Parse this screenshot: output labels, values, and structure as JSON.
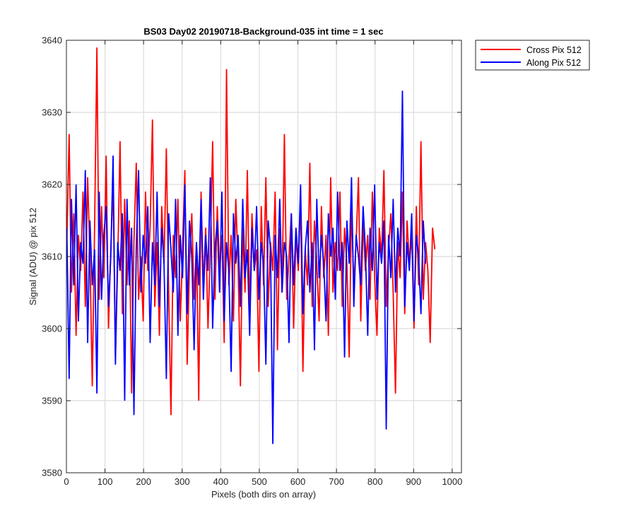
{
  "chart_data": {
    "type": "line",
    "title": "BS03 Day02 20190718-Background-035 int time = 1 sec",
    "xlabel": "Pixels (both dirs on array)",
    "ylabel": "Signal (ADU) @ pix 512",
    "xlim": [
      0,
      1024
    ],
    "ylim": [
      3580,
      3640
    ],
    "xticks": [
      0,
      100,
      200,
      300,
      400,
      500,
      600,
      700,
      800,
      900,
      1000
    ],
    "yticks": [
      3580,
      3590,
      3600,
      3610,
      3620,
      3630,
      3640
    ],
    "grid": true,
    "legend_position": "outside-top-right",
    "x_start": 1,
    "x_step": 6,
    "series": [
      {
        "name": "Cross Pix 512",
        "color": "#ff0000",
        "values": [
          3612,
          3627,
          3605,
          3616,
          3599,
          3613,
          3608,
          3619,
          3603,
          3621,
          3610,
          3592,
          3614,
          3639,
          3604,
          3617,
          3607,
          3624,
          3600,
          3611,
          3620,
          3596,
          3609,
          3626,
          3602,
          3618,
          3606,
          3615,
          3591,
          3612,
          3623,
          3604,
          3610,
          3601,
          3619,
          3608,
          3614,
          3629,
          3603,
          3612,
          3599,
          3617,
          3609,
          3625,
          3605,
          3588,
          3613,
          3607,
          3618,
          3601,
          3611,
          3622,
          3595,
          3609,
          3616,
          3604,
          3612,
          3590,
          3619,
          3606,
          3614,
          3600,
          3611,
          3626,
          3604,
          3617,
          3608,
          3613,
          3598,
          3636,
          3606,
          3613,
          3601,
          3618,
          3609,
          3592,
          3614,
          3605,
          3622,
          3602,
          3616,
          3608,
          3611,
          3594,
          3617,
          3606,
          3621,
          3603,
          3612,
          3608,
          3619,
          3597,
          3614,
          3605,
          3627,
          3604,
          3610,
          3616,
          3600,
          3613,
          3608,
          3618,
          3594,
          3611,
          3606,
          3623,
          3603,
          3615,
          3609,
          3601,
          3617,
          3607,
          3613,
          3599,
          3621,
          3605,
          3612,
          3608,
          3619,
          3603,
          3614,
          3609,
          3596,
          3617,
          3606,
          3612,
          3621,
          3601,
          3615,
          3608,
          3613,
          3604,
          3619,
          3607,
          3599,
          3614,
          3610,
          3622,
          3603,
          3611,
          3616,
          3605,
          3591,
          3612,
          3607,
          3619,
          3602,
          3615,
          3609,
          3613,
          3600,
          3617,
          3606,
          3626,
          3604,
          3612,
          3608,
          3598,
          3614,
          3611
        ],
        "sampling": "every 6th pixel (x = 1, 7, 13, …)"
      },
      {
        "name": "Along Pix 512",
        "color": "#0000ff",
        "values": [
          3614,
          3593,
          3618,
          3606,
          3620,
          3601,
          3612,
          3609,
          3622,
          3598,
          3615,
          3606,
          3611,
          3591,
          3619,
          3604,
          3613,
          3617,
          3603,
          3610,
          3624,
          3595,
          3612,
          3608,
          3616,
          3590,
          3618,
          3606,
          3614,
          3588,
          3611,
          3622,
          3605,
          3613,
          3609,
          3617,
          3598,
          3612,
          3606,
          3619,
          3603,
          3614,
          3609,
          3593,
          3616,
          3611,
          3605,
          3618,
          3599,
          3613,
          3607,
          3620,
          3602,
          3615,
          3610,
          3597,
          3612,
          3606,
          3618,
          3604,
          3613,
          3608,
          3621,
          3600,
          3611,
          3615,
          3605,
          3619,
          3601,
          3612,
          3608,
          3594,
          3616,
          3609,
          3613,
          3603,
          3618,
          3607,
          3611,
          3599,
          3614,
          3608,
          3617,
          3604,
          3612,
          3609,
          3595,
          3615,
          3611,
          3584,
          3613,
          3607,
          3618,
          3605,
          3612,
          3610,
          3598,
          3616,
          3606,
          3614,
          3609,
          3620,
          3602,
          3611,
          3615,
          3605,
          3612,
          3597,
          3618,
          3607,
          3613,
          3609,
          3601,
          3616,
          3610,
          3614,
          3604,
          3619,
          3608,
          3612,
          3596,
          3615,
          3609,
          3621,
          3603,
          3613,
          3610,
          3606,
          3617,
          3611,
          3599,
          3614,
          3608,
          3620,
          3604,
          3612,
          3609,
          3615,
          3586,
          3613,
          3607,
          3618,
          3605,
          3614,
          3610,
          3633,
          3603,
          3612,
          3608,
          3616,
          3601,
          3613,
          3610,
          3602,
          3615,
          3609
        ],
        "sampling": "every 6th pixel (x = 1, 7, 13, …)"
      }
    ]
  }
}
